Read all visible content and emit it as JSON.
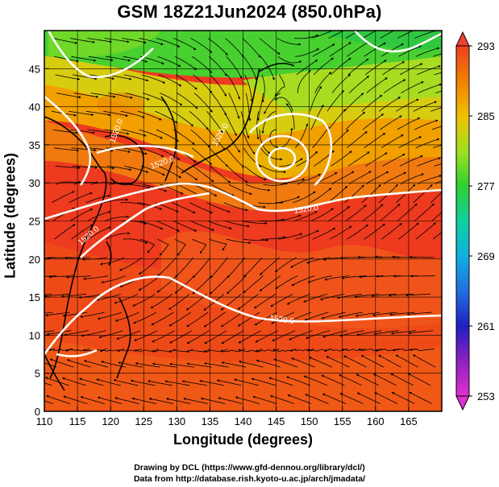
{
  "title": "GSM 18Z21Jun2024 (850.0hPa)",
  "xlabel": "Longitude (degrees)",
  "ylabel": "Latitude  (degrees)",
  "credits": [
    "Drawing by DCL (https://www.gfd-dennou.org/library/dcl/)",
    "Data from http://database.rish.kyoto-u.ac.jp/arch/jmadata/"
  ],
  "chart_data": {
    "type": "heatmap",
    "field": "temperature (K) with wind streamlines and geopotential height contours",
    "xlim": [
      110,
      170
    ],
    "ylim": [
      0,
      50
    ],
    "x_ticks": [
      110,
      115,
      120,
      125,
      130,
      135,
      140,
      145,
      150,
      155,
      160,
      165
    ],
    "y_ticks": [
      0,
      5,
      10,
      15,
      20,
      25,
      30,
      35,
      40,
      45
    ],
    "grid": true,
    "colorbar": {
      "min": 253,
      "max": 293,
      "ticks": [
        253,
        261,
        269,
        277,
        285,
        293
      ],
      "colors": [
        "#e030d0",
        "#9020c0",
        "#2020c0",
        "#2070e0",
        "#10b0e0",
        "#10d0a0",
        "#30d030",
        "#a0e020",
        "#f0c000",
        "#f08000",
        "#f04020"
      ]
    },
    "contour_labels": [
      "1520.0",
      "1520.0",
      "1520.0",
      "1520.0",
      "1520.0",
      "1520.0"
    ],
    "low_center": {
      "lon": 145,
      "lat": 35.5
    }
  }
}
